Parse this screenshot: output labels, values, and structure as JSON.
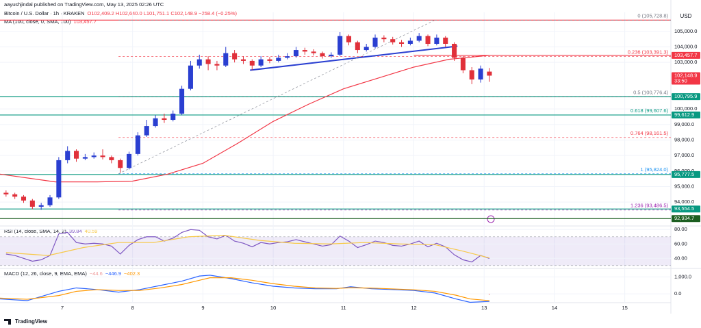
{
  "header": {
    "author": "aayushjindal published on TradingView.com, May 13, 2025 02:26 UTC",
    "symbol": "Bitcoin / U.S. Dollar · 1h · KRAKEN",
    "ohlc": "O102,409.2 H102,640.0 L101,751.1 C102,148.9 −258.4 (−0.25%)",
    "currency": "USD",
    "footer": "TradingView"
  },
  "chart_data": [
    {
      "type": "candlestick",
      "title": "MA (100, close, 0, SMA, 100)",
      "up_color": "#2a3fd1",
      "down_color": "#e0303a",
      "grid": true,
      "xlim": [
        6.114,
        15.656
      ],
      "xticks": [
        7,
        8,
        9,
        10,
        11,
        12,
        13,
        14,
        15
      ],
      "ylim": [
        92460,
        106230
      ],
      "yticks": [
        {
          "value": 105000,
          "label": "105,000.0"
        },
        {
          "value": 104000,
          "label": "104,000.0"
        },
        {
          "value": 103000,
          "label": "103,000.0"
        },
        {
          "value": 100000,
          "label": "100,000.0"
        },
        {
          "value": 99000,
          "label": "99,000.0"
        },
        {
          "value": 98000,
          "label": "98,000.0"
        },
        {
          "value": 97000,
          "label": "97,000.0"
        },
        {
          "value": 96000,
          "label": "96,000.0"
        },
        {
          "value": 95000,
          "label": "95,000.0"
        },
        {
          "value": 94000,
          "label": "94,000.0"
        }
      ],
      "x": [
        6.2,
        6.325,
        6.45,
        6.575,
        6.7,
        6.825,
        6.95,
        7.075,
        7.2,
        7.325,
        7.45,
        7.575,
        7.7,
        7.825,
        7.95,
        8.075,
        8.2,
        8.325,
        8.45,
        8.575,
        8.7,
        8.825,
        8.95,
        9.075,
        9.2,
        9.325,
        9.45,
        9.575,
        9.7,
        9.825,
        9.95,
        10.075,
        10.2,
        10.325,
        10.45,
        10.575,
        10.7,
        10.825,
        10.95,
        11.075,
        11.2,
        11.325,
        11.45,
        11.575,
        11.7,
        11.825,
        11.95,
        12.075,
        12.2,
        12.325,
        12.45,
        12.575,
        12.7,
        12.825,
        12.95,
        13.075
      ],
      "open": [
        94600,
        94500,
        94350,
        94100,
        93700,
        93800,
        94300,
        96700,
        97300,
        96800,
        96900,
        97000,
        96900,
        96700,
        96200,
        97100,
        98300,
        98900,
        99400,
        99300,
        99700,
        101300,
        102800,
        103200,
        102900,
        102800,
        103600,
        103200,
        103100,
        102800,
        103200,
        103100,
        103300,
        103400,
        103800,
        103700,
        103600,
        103400,
        103500,
        104700,
        104300,
        103800,
        104000,
        104600,
        104500,
        104300,
        104200,
        104400,
        104700,
        104200,
        104600,
        104200,
        103300,
        102500,
        101900,
        102409.2
      ],
      "high": [
        94750,
        94600,
        94450,
        94200,
        93950,
        94450,
        96900,
        97600,
        97400,
        97100,
        97200,
        97400,
        97000,
        96800,
        97250,
        98500,
        99300,
        99600,
        99700,
        99900,
        101500,
        103100,
        103500,
        103400,
        103100,
        104000,
        103800,
        103400,
        103200,
        103400,
        103350,
        103500,
        103600,
        104000,
        103950,
        103850,
        103700,
        103650,
        104950,
        104800,
        104400,
        104200,
        104800,
        104750,
        104650,
        104450,
        104600,
        104900,
        104800,
        104800,
        104700,
        104300,
        103400,
        102700,
        102800,
        102640
      ],
      "low": [
        94350,
        94200,
        93950,
        93550,
        93500,
        93700,
        94200,
        96500,
        96600,
        96700,
        96800,
        96750,
        96500,
        95900,
        96100,
        97000,
        98200,
        98800,
        99100,
        99200,
        99600,
        101200,
        102600,
        102500,
        102500,
        102700,
        103000,
        102900,
        102500,
        102700,
        102950,
        103000,
        103200,
        103300,
        103500,
        103450,
        103250,
        103300,
        103400,
        104100,
        103600,
        103700,
        103900,
        104300,
        104150,
        104000,
        104100,
        104300,
        104050,
        104100,
        104000,
        103100,
        102300,
        101600,
        101700,
        101751.1
      ],
      "close": [
        94500,
        94350,
        94100,
        93700,
        93800,
        94300,
        96700,
        97300,
        96800,
        96900,
        97000,
        96900,
        96700,
        96200,
        97100,
        98300,
        98900,
        99400,
        99300,
        99700,
        101300,
        102800,
        103200,
        102900,
        102800,
        103600,
        103200,
        103100,
        102800,
        103200,
        103100,
        103300,
        103400,
        103800,
        103700,
        103600,
        103400,
        103500,
        104700,
        104300,
        103800,
        104000,
        104600,
        104500,
        104300,
        104200,
        104400,
        104700,
        104200,
        104600,
        104200,
        103300,
        102500,
        101900,
        102600,
        102148.9
      ],
      "series": [
        {
          "color": "#f23645",
          "x": [
            6.114,
            6.9,
            7.5,
            8.0,
            8.5,
            9.0,
            9.5,
            10.0,
            10.5,
            11.0,
            11.5,
            12.0,
            12.5,
            13.075
          ],
          "values": [
            95800,
            95300,
            95300,
            95350,
            95800,
            96500,
            97800,
            99200,
            100300,
            101300,
            102000,
            102700,
            103200,
            103457.7
          ],
          "value_label": "103,457.7"
        }
      ],
      "trend_lines": [
        {
          "color": "#2a3fd1",
          "x": [
            9.67,
            12.62
          ],
          "values": [
            102500,
            104050
          ]
        },
        {
          "color": "#9598a1",
          "dashed": true,
          "x": [
            7.8,
            12.3
          ],
          "values": [
            95824,
            105728.8
          ]
        }
      ],
      "fib_levels": [
        {
          "value": 105728.8,
          "label": "0 (105,728.8)",
          "color": "#787b86"
        },
        {
          "value": 103391.3,
          "label": "0.236 (103,391.3)",
          "color": "#f23645"
        },
        {
          "value": 100776.4,
          "label": "0.5 (100,776.4)",
          "color": "#787b86"
        },
        {
          "value": 99607.6,
          "label": "0.618 (99,607.6)",
          "color": "#089981"
        },
        {
          "value": 98161.5,
          "label": "0.764 (98,161.5)",
          "color": "#f23645"
        },
        {
          "value": 95824.0,
          "label": "1 (95,824.0)",
          "color": "#2196f3"
        },
        {
          "value": 93486.5,
          "label": "1.236 (93,486.5)",
          "color": "#9c27b0"
        }
      ],
      "price_lines": [
        {
          "value": 105728.8,
          "color": "#f23645"
        },
        {
          "value": 103457.7,
          "color": "#f23645",
          "from": 12.0
        },
        {
          "value": 100795.9,
          "color": "#089981"
        },
        {
          "value": 99612.9,
          "color": "#089981"
        },
        {
          "value": 95777.5,
          "color": "#089981"
        },
        {
          "value": 93554.5,
          "color": "#089981"
        },
        {
          "value": 92934.7,
          "color": "#1b5e20"
        }
      ],
      "price_tags": [
        {
          "value": 103457.7,
          "label": "103,457.7",
          "color": "#f23645"
        },
        {
          "value": 102148.9,
          "label": "102,148.9",
          "color": "#f23645",
          "countdown": "33:50"
        },
        {
          "value": 100795.9,
          "label": "100,795.9",
          "color": "#089981"
        },
        {
          "value": 99612.9,
          "label": "99,612.9",
          "color": "#089981"
        },
        {
          "value": 95777.5,
          "label": "95,777.5",
          "color": "#089981"
        },
        {
          "value": 93554.5,
          "label": "93,554.5",
          "color": "#089981"
        },
        {
          "value": 92934.7,
          "label": "92,934.7",
          "color": "#1b5e20"
        }
      ]
    },
    {
      "type": "line",
      "title": "RSI (14, close, SMA, 14, 2)",
      "xlim": [
        6.114,
        15.656
      ],
      "ylim": [
        26,
        85
      ],
      "yticks": [
        {
          "value": 80,
          "label": "80.00"
        },
        {
          "value": 60,
          "label": "60.00"
        },
        {
          "value": 40,
          "label": "40.00"
        }
      ],
      "band": [
        30,
        70
      ],
      "band_color": "#7e57c2",
      "series": [
        {
          "color": "#7e57c2",
          "value_label": "39.84",
          "x": [
            6.2,
            6.325,
            6.45,
            6.575,
            6.7,
            6.825,
            6.95,
            7.075,
            7.2,
            7.325,
            7.45,
            7.575,
            7.7,
            7.825,
            7.95,
            8.075,
            8.2,
            8.325,
            8.45,
            8.575,
            8.7,
            8.825,
            8.95,
            9.075,
            9.2,
            9.325,
            9.45,
            9.575,
            9.7,
            9.825,
            9.95,
            10.075,
            10.2,
            10.325,
            10.45,
            10.575,
            10.7,
            10.825,
            10.95,
            11.075,
            11.2,
            11.325,
            11.45,
            11.575,
            11.7,
            11.825,
            11.95,
            12.075,
            12.2,
            12.325,
            12.45,
            12.575,
            12.7,
            12.825,
            12.95,
            13.075
          ],
          "values": [
            46,
            44,
            40,
            36,
            38,
            44,
            74,
            76,
            62,
            60,
            61,
            60,
            57,
            46,
            58,
            66,
            70,
            70,
            64,
            68,
            76,
            80,
            79,
            70,
            67,
            72,
            64,
            61,
            56,
            62,
            60,
            62,
            63,
            66,
            63,
            60,
            57,
            59,
            71,
            64,
            55,
            59,
            64,
            62,
            58,
            57,
            60,
            64,
            56,
            61,
            56,
            45,
            38,
            35,
            44,
            39.84
          ]
        },
        {
          "color": "#f7c948",
          "value_label": "40.59",
          "x": [
            6.2,
            6.8,
            7.3,
            7.8,
            8.3,
            8.8,
            9.3,
            9.8,
            10.3,
            10.8,
            11.3,
            11.8,
            12.3,
            12.7,
            13.075
          ],
          "values": [
            48,
            44,
            55,
            62,
            62,
            70,
            72,
            65,
            61,
            60,
            62,
            60,
            59,
            50,
            40.59
          ]
        }
      ]
    },
    {
      "type": "line",
      "title": "MACD (12, 26, close, 9, EMA, EMA)",
      "xlim": [
        6.114,
        15.656
      ],
      "ylim": [
        -520,
        1500
      ],
      "yticks": [
        {
          "value": 1000,
          "label": "1,000.0"
        },
        {
          "value": 0,
          "label": "0.0"
        }
      ],
      "histogram": {
        "color": "#ef9a9a",
        "x": [
          13.075
        ],
        "values": [
          -44.6
        ],
        "value_labels": [
          "−44.6"
        ]
      },
      "series": [
        {
          "color": "#2962ff",
          "value_label": "−446.9",
          "x": [
            6.114,
            6.5,
            6.95,
            7.2,
            7.5,
            7.8,
            8.1,
            8.4,
            8.7,
            8.95,
            9.1,
            9.4,
            9.7,
            10.0,
            10.3,
            10.6,
            10.9,
            11.1,
            11.4,
            11.7,
            12.0,
            12.3,
            12.6,
            12.8,
            13.075
          ],
          "values": [
            -300,
            -400,
            150,
            350,
            250,
            100,
            250,
            500,
            750,
            1050,
            1100,
            900,
            650,
            450,
            350,
            300,
            300,
            420,
            300,
            250,
            200,
            50,
            -300,
            -500,
            -446.9
          ]
        },
        {
          "color": "#ff9800",
          "value_label": "−402.3",
          "x": [
            6.114,
            6.5,
            6.95,
            7.2,
            7.5,
            7.8,
            8.1,
            8.4,
            8.7,
            8.95,
            9.1,
            9.4,
            9.7,
            10.0,
            10.3,
            10.6,
            10.9,
            11.1,
            11.4,
            11.7,
            12.0,
            12.3,
            12.6,
            12.8,
            13.075
          ],
          "values": [
            -250,
            -320,
            -100,
            150,
            250,
            200,
            200,
            350,
            550,
            800,
            950,
            950,
            800,
            600,
            450,
            350,
            320,
            360,
            340,
            290,
            240,
            150,
            -80,
            -300,
            -402.3
          ]
        }
      ]
    }
  ]
}
